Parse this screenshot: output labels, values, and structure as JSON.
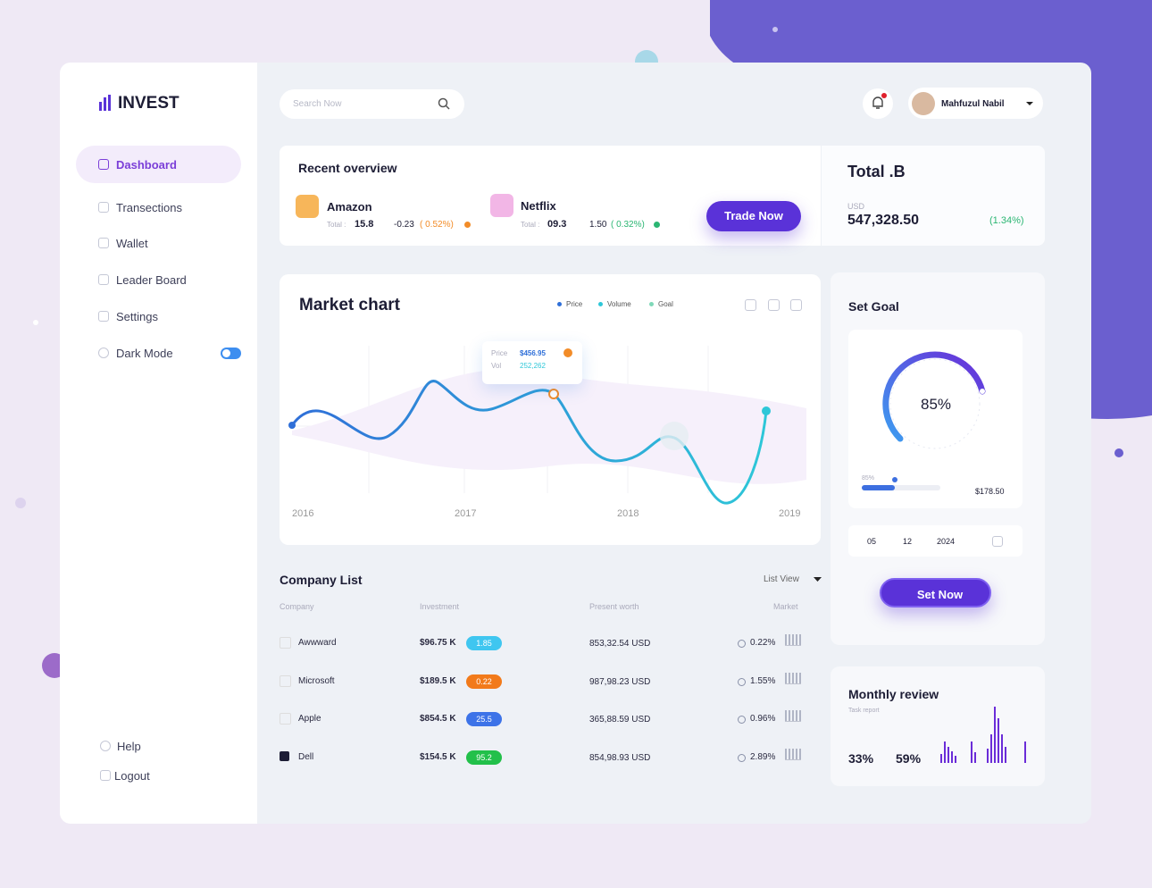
{
  "sidebar": {
    "brand": "INVEST",
    "nav": [
      "Dashboard",
      "Transections",
      "Wallet",
      "Leader Board",
      "Settings",
      "Dark Mode"
    ],
    "footer": [
      "Help",
      "Logout"
    ]
  },
  "topbar": {
    "search_placeholder": "Search Now",
    "user": "Mahfuzul Nabil"
  },
  "overview": {
    "title": "Recent overview",
    "items": [
      {
        "name": "Amazon",
        "total_label": "Total :",
        "total": "15.8",
        "change": "-0.23",
        "pct": "( 0.52%)"
      },
      {
        "name": "Netflix",
        "total_label": "Total :",
        "total": "09.3",
        "change": "1.50",
        "pct": "( 0.32%)"
      }
    ],
    "button": "Trade Now"
  },
  "total": {
    "title": "Total .B",
    "currency": "USD",
    "amount": "547,328.50",
    "change": "(1.34%)"
  },
  "market": {
    "title": "Market chart",
    "legend": [
      "Price",
      "Volume",
      "Goal"
    ],
    "tooltip": {
      "price_label": "Price",
      "price": "$456.95",
      "vol_label": "Vol",
      "vol": "252,262"
    },
    "years": [
      "2016",
      "2017",
      "2018",
      "2019"
    ]
  },
  "goal": {
    "title": "Set Goal",
    "percent": "85%",
    "slider_label": "85%",
    "amount": "$178.50",
    "date": [
      "05",
      "12",
      "2024"
    ],
    "button": "Set Now"
  },
  "companies": {
    "title": "Company List",
    "view": "List View",
    "columns": [
      "Company",
      "Investment",
      "Present worth",
      "Market"
    ],
    "rows": [
      [
        "Awwward",
        "$96.75 K",
        "1.85",
        "853,32.54 USD",
        "0.22%"
      ],
      [
        "Microsoft",
        "$189.5 K",
        "0.22",
        "987,98.23 USD",
        "1.55%"
      ],
      [
        "Apple",
        "$854.5 K",
        "25.5",
        "365,88.59 USD",
        "0.96%"
      ],
      [
        "Dell",
        "$154.5 K",
        "95.2",
        "854,98.93 USD",
        "2.89%"
      ]
    ]
  },
  "review": {
    "title": "Monthly review",
    "subtitle": "Task report",
    "stats": [
      "33%",
      "59%"
    ]
  }
}
